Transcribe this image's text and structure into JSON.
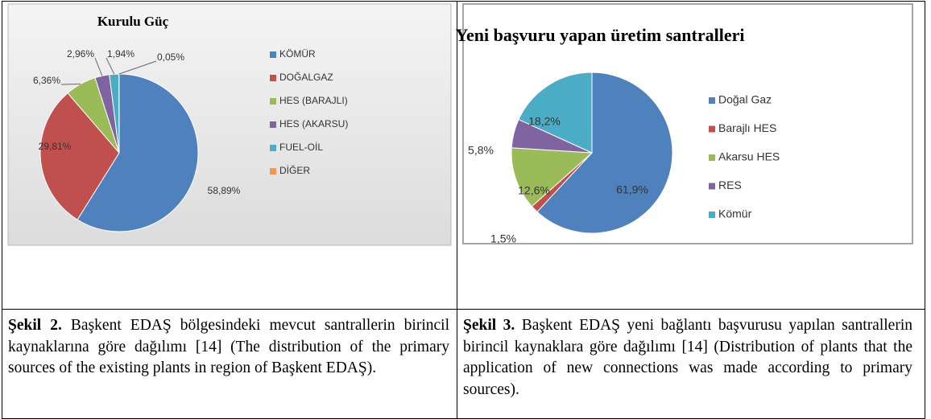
{
  "chart_data": [
    {
      "type": "pie",
      "title": "Kurulu Güç",
      "categories": [
        "KÖMÜR",
        "DOĞALGAZ",
        "HES (BARAJLI)",
        "HES (AKARSU)",
        "FUEL-OİL",
        "DİĞER"
      ],
      "values": [
        58.89,
        29.81,
        6.36,
        2.96,
        1.94,
        0.05
      ],
      "value_labels": [
        "58,89%",
        "29,81%",
        "6,36%",
        "2,96%",
        "1,94%",
        "0,05%"
      ],
      "colors": [
        "#4f81bd",
        "#c0504d",
        "#9bbb59",
        "#8064a2",
        "#4bacc6",
        "#f79646"
      ],
      "legend": "right"
    },
    {
      "type": "pie",
      "title": "Yeni başvuru yapan üretim santralleri",
      "categories": [
        "Doğal Gaz",
        "Barajlı HES",
        "Akarsu HES",
        "RES",
        "Kömür"
      ],
      "values": [
        61.9,
        1.5,
        12.6,
        5.8,
        18.2
      ],
      "value_labels": [
        "61,9%",
        "1,5%",
        "12,6%",
        "5,8%",
        "18,2%"
      ],
      "colors": [
        "#4f81bd",
        "#c0504d",
        "#9bbb59",
        "#8064a2",
        "#4bacc6"
      ],
      "legend": "right"
    }
  ],
  "captions": [
    {
      "label": "Şekil 2.",
      "text": "Başkent EDAŞ bölgesindeki mevcut santrallerin birincil kaynaklarına göre dağılımı [14] (The distribution of the primary sources of the existing plants in region of Başkent EDAŞ)."
    },
    {
      "label": "Şekil 3.",
      "text": "Başkent EDAŞ yeni bağlantı başvurusu yapılan santrallerin birincil kaynaklara göre dağılımı [14] (Distribution of plants that the application of new connections was made according to primary sources)."
    }
  ]
}
